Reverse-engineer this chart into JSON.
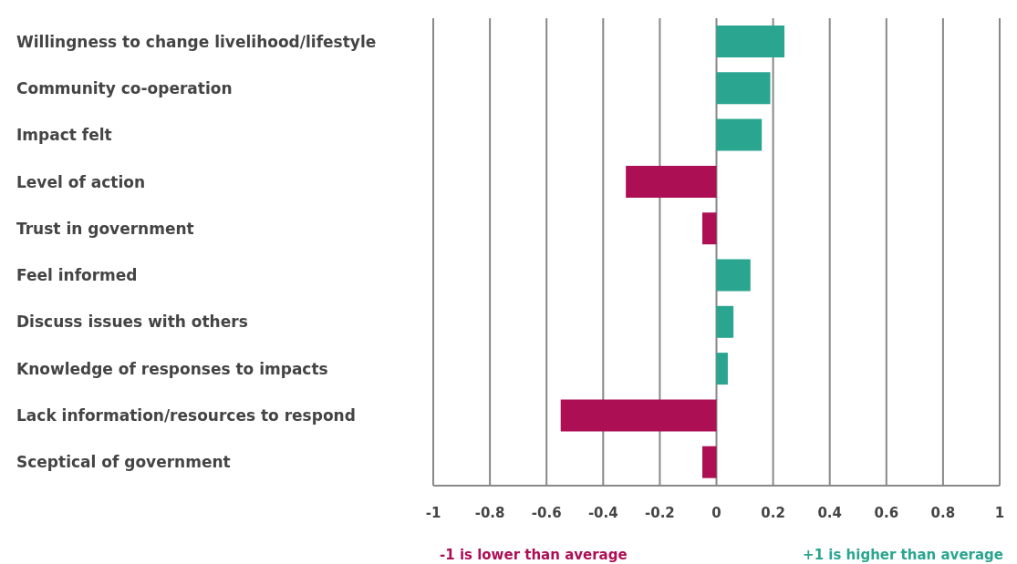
{
  "chart_data": {
    "type": "bar",
    "orientation": "horizontal",
    "categories": [
      "Willingness to change livelihood/lifestyle",
      "Community co-operation",
      "Impact felt",
      "Level of action",
      "Trust in government",
      "Feel informed",
      "Discuss issues with others",
      "Knowledge of responses to impacts",
      "Lack information/resources to respond",
      "Sceptical of government"
    ],
    "values": [
      0.24,
      0.19,
      0.16,
      -0.32,
      -0.05,
      0.12,
      0.06,
      0.04,
      -0.55,
      -0.05
    ],
    "colors": [
      "#2aa58f",
      "#2aa58f",
      "#2aa58f",
      "#ad0f55",
      "#ad0f55",
      "#2aa58f",
      "#2aa58f",
      "#2aa58f",
      "#ad0f55",
      "#ad0f55"
    ],
    "xlim": [
      -1,
      1
    ],
    "xticks": [
      {
        "value": -1,
        "label": "-1"
      },
      -0.8,
      -0.6,
      -0.4,
      -0.2,
      0,
      0.2,
      0.4,
      0.6,
      0.8,
      {
        "value": 1,
        "label": "1"
      }
    ],
    "grid": "x",
    "annotations": [
      "-1 is lower than average",
      "+1 is higher than average"
    ]
  }
}
